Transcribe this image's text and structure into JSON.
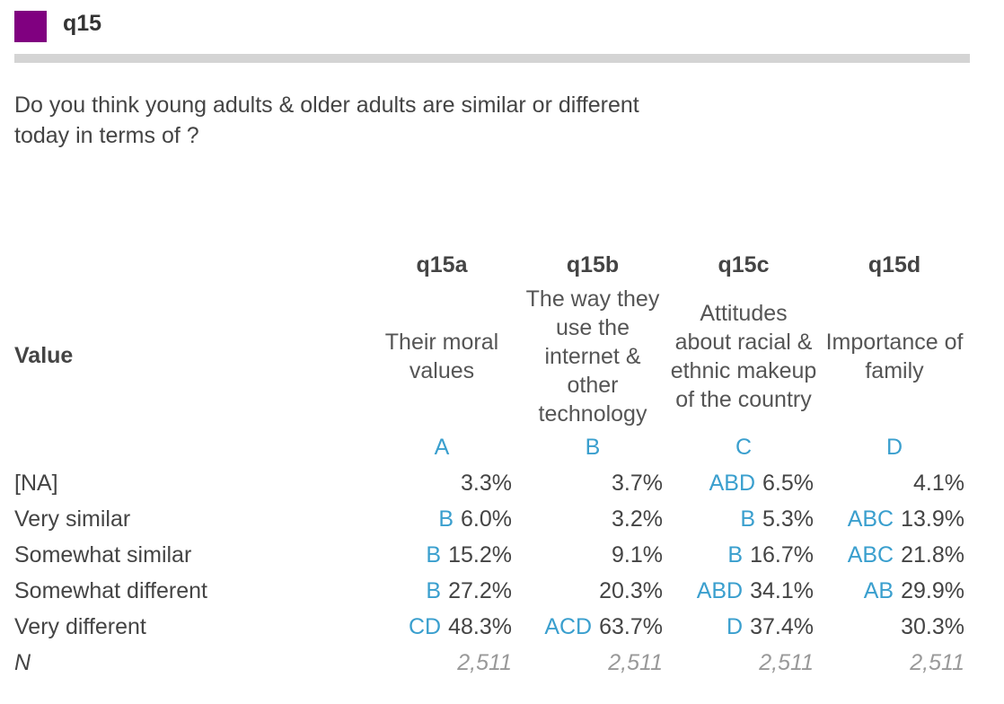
{
  "header": {
    "title": "q15",
    "accent_color": "#800080"
  },
  "question": {
    "line1": "Do you think young adults & older adults are similar or different",
    "line2": "today in terms of ?"
  },
  "table": {
    "value_header": "Value",
    "columns": [
      {
        "code": "q15a",
        "description": "Their moral values",
        "letter": "A"
      },
      {
        "code": "q15b",
        "description": "The way they use the internet & other technology",
        "letter": "B"
      },
      {
        "code": "q15c",
        "description": "Attitudes about racial & ethnic makeup of the country",
        "letter": "C"
      },
      {
        "code": "q15d",
        "description": "Importance of family",
        "letter": "D"
      }
    ],
    "rows": [
      {
        "label": "[NA]",
        "cells": [
          {
            "sig": "",
            "value": "3.3%"
          },
          {
            "sig": "",
            "value": "3.7%"
          },
          {
            "sig": "ABD",
            "value": "6.5%"
          },
          {
            "sig": "",
            "value": "4.1%"
          }
        ]
      },
      {
        "label": "Very similar",
        "cells": [
          {
            "sig": "B",
            "value": "6.0%"
          },
          {
            "sig": "",
            "value": "3.2%"
          },
          {
            "sig": "B",
            "value": "5.3%"
          },
          {
            "sig": "ABC",
            "value": "13.9%"
          }
        ]
      },
      {
        "label": "Somewhat similar",
        "cells": [
          {
            "sig": "B",
            "value": "15.2%"
          },
          {
            "sig": "",
            "value": "9.1%"
          },
          {
            "sig": "B",
            "value": "16.7%"
          },
          {
            "sig": "ABC",
            "value": "21.8%"
          }
        ]
      },
      {
        "label": "Somewhat different",
        "cells": [
          {
            "sig": "B",
            "value": "27.2%"
          },
          {
            "sig": "",
            "value": "20.3%"
          },
          {
            "sig": "ABD",
            "value": "34.1%"
          },
          {
            "sig": "AB",
            "value": "29.9%"
          }
        ]
      },
      {
        "label": "Very different",
        "cells": [
          {
            "sig": "CD",
            "value": "48.3%"
          },
          {
            "sig": "ACD",
            "value": "63.7%"
          },
          {
            "sig": "D",
            "value": "37.4%"
          },
          {
            "sig": "",
            "value": "30.3%"
          }
        ]
      }
    ],
    "n_row": {
      "label": "N",
      "values": [
        "2,511",
        "2,511",
        "2,511",
        "2,511"
      ]
    }
  }
}
